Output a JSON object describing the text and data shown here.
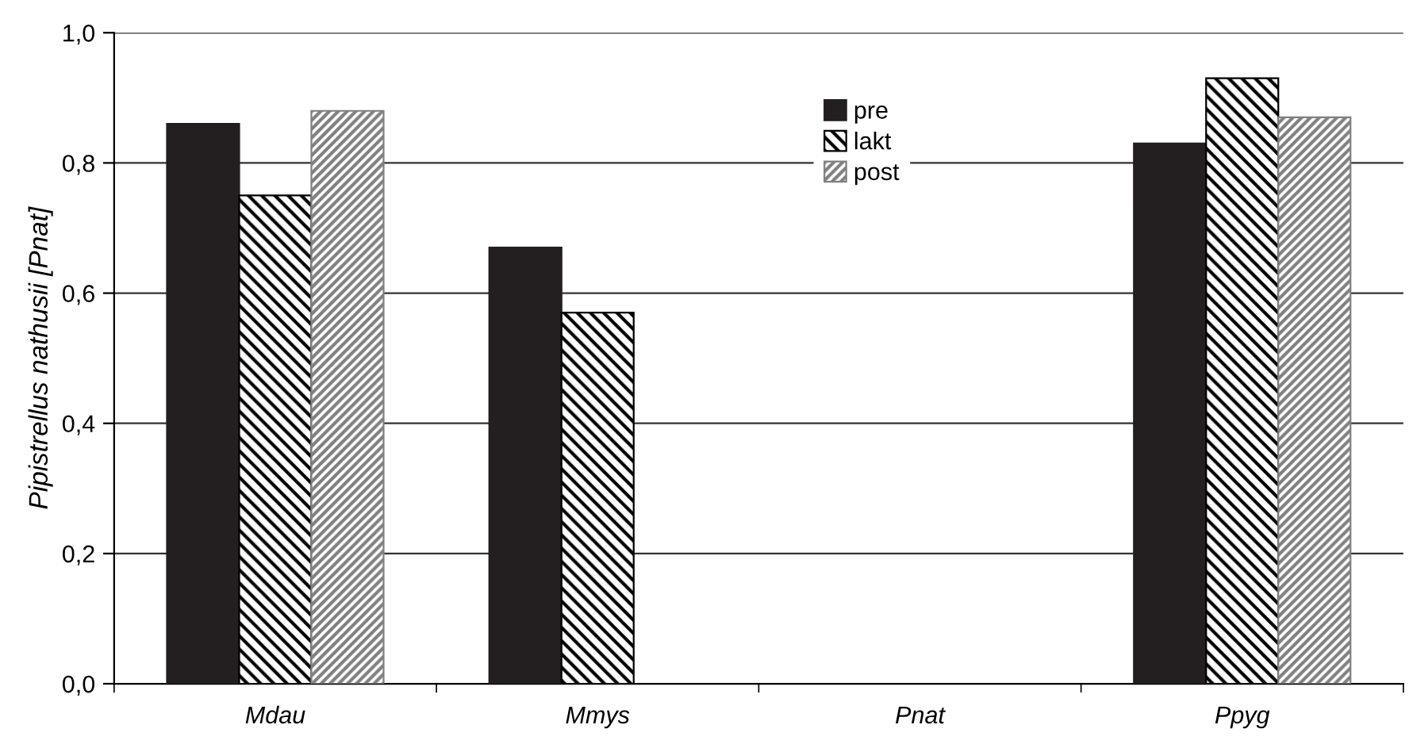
{
  "chart_data": {
    "type": "bar",
    "ylabel": "Pipistrellus nathusii [Pnat]",
    "categories": [
      "Mdau",
      "Mmys",
      "Pnat",
      "Ppyg"
    ],
    "series": [
      {
        "name": "pre",
        "color": "#231f20",
        "values": [
          0.86,
          0.67,
          null,
          0.83
        ]
      },
      {
        "name": "lakt",
        "color": "#000000",
        "values": [
          0.75,
          0.57,
          null,
          0.93
        ]
      },
      {
        "name": "post",
        "color": "#808080",
        "values": [
          0.88,
          null,
          null,
          0.87
        ]
      }
    ],
    "ylim": [
      0,
      1
    ],
    "yticks": [
      {
        "value": 0,
        "label": "0,0"
      },
      {
        "value": 0.2,
        "label": "0,2"
      },
      {
        "value": 0.4,
        "label": "0,4"
      },
      {
        "value": 0.6,
        "label": "0,6"
      },
      {
        "value": 0.8,
        "label": "0,8"
      },
      {
        "value": 1,
        "label": "1,0"
      }
    ],
    "grid": "y",
    "legend": "top"
  }
}
